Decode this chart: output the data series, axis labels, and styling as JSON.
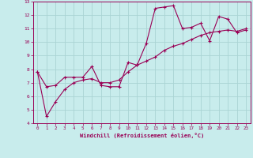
{
  "xlabel": "Windchill (Refroidissement éolien,°C)",
  "xlim": [
    -0.5,
    23.5
  ],
  "ylim": [
    4,
    13
  ],
  "xticks": [
    0,
    1,
    2,
    3,
    4,
    5,
    6,
    7,
    8,
    9,
    10,
    11,
    12,
    13,
    14,
    15,
    16,
    17,
    18,
    19,
    20,
    21,
    22,
    23
  ],
  "yticks": [
    4,
    5,
    6,
    7,
    8,
    9,
    10,
    11,
    12,
    13
  ],
  "bg_color": "#c8ecec",
  "line_color": "#990055",
  "grid_color": "#aad4d4",
  "series1_x": [
    0,
    1,
    2,
    3,
    4,
    5,
    6,
    7,
    8,
    9,
    10,
    11,
    12,
    13,
    14,
    15,
    16,
    17,
    18,
    19,
    20,
    21,
    22,
    23
  ],
  "series1_y": [
    7.8,
    6.7,
    6.8,
    7.4,
    7.4,
    7.4,
    8.2,
    6.8,
    6.7,
    6.7,
    8.5,
    8.3,
    9.9,
    12.5,
    12.6,
    12.7,
    11.0,
    11.1,
    11.4,
    10.1,
    11.9,
    11.7,
    10.7,
    10.9
  ],
  "series2_x": [
    0,
    1,
    2,
    3,
    4,
    5,
    6,
    7,
    8,
    9,
    10,
    11,
    12,
    13,
    14,
    15,
    16,
    17,
    18,
    19,
    20,
    21,
    22,
    23
  ],
  "series2_y": [
    7.8,
    4.5,
    5.6,
    6.5,
    7.0,
    7.2,
    7.3,
    7.0,
    7.0,
    7.2,
    7.8,
    8.3,
    8.6,
    8.9,
    9.4,
    9.7,
    9.9,
    10.2,
    10.5,
    10.7,
    10.8,
    10.9,
    10.8,
    11.0
  ]
}
